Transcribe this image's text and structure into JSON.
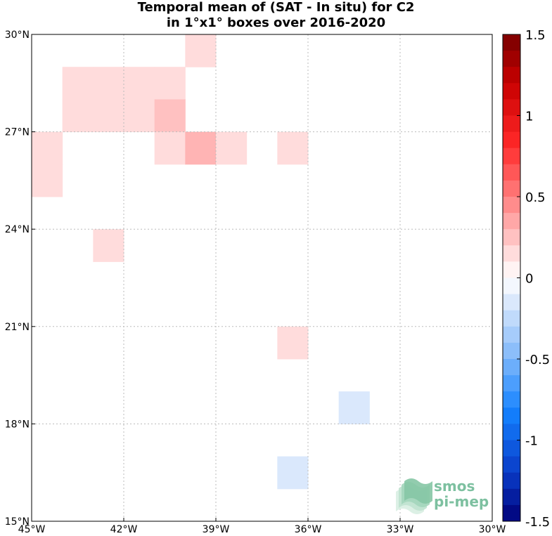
{
  "chart_data": {
    "type": "heatmap",
    "title_line1": "Temporal mean of (SAT - In situ) for C2",
    "title_line2": "in 1°x1° boxes over 2016-2020",
    "x_ticks": [
      "45°W",
      "42°W",
      "39°W",
      "36°W",
      "33°W",
      "30°W"
    ],
    "y_ticks": [
      "15°N",
      "18°N",
      "21°N",
      "24°N",
      "27°N",
      "30°N"
    ],
    "xlim": [
      -45,
      -30
    ],
    "ylim": [
      15,
      30
    ],
    "grid": true,
    "colorbar": {
      "min": -1.5,
      "max": 1.5,
      "levels": 30,
      "tick_labels": [
        "1.5",
        "1",
        "0.5",
        "0",
        "-0.5",
        "-1",
        "-1.5"
      ],
      "tick_values": [
        1.5,
        1,
        0.5,
        0,
        -0.5,
        -1,
        -1.5
      ]
    },
    "cells": [
      {
        "lon": -40,
        "lat": 29,
        "value": 0.15
      },
      {
        "lon": -44,
        "lat": 28,
        "value": 0.15
      },
      {
        "lon": -43,
        "lat": 28,
        "value": 0.15
      },
      {
        "lon": -42,
        "lat": 28,
        "value": 0.15
      },
      {
        "lon": -41,
        "lat": 28,
        "value": 0.15
      },
      {
        "lon": -44,
        "lat": 27,
        "value": 0.15
      },
      {
        "lon": -43,
        "lat": 27,
        "value": 0.15
      },
      {
        "lon": -42,
        "lat": 27,
        "value": 0.15
      },
      {
        "lon": -41,
        "lat": 27,
        "value": 0.25
      },
      {
        "lon": -45,
        "lat": 26,
        "value": 0.15
      },
      {
        "lon": -41,
        "lat": 26,
        "value": 0.15
      },
      {
        "lon": -40,
        "lat": 26,
        "value": 0.3
      },
      {
        "lon": -39,
        "lat": 26,
        "value": 0.15
      },
      {
        "lon": -37,
        "lat": 26,
        "value": 0.15
      },
      {
        "lon": -45,
        "lat": 25,
        "value": 0.15
      },
      {
        "lon": -43,
        "lat": 23,
        "value": 0.15
      },
      {
        "lon": -37,
        "lat": 20,
        "value": 0.15
      },
      {
        "lon": -35,
        "lat": 18,
        "value": -0.15
      },
      {
        "lon": -37,
        "lat": 16,
        "value": -0.15
      }
    ]
  },
  "logo": {
    "line1": "smos",
    "line2": "pi-mep"
  }
}
